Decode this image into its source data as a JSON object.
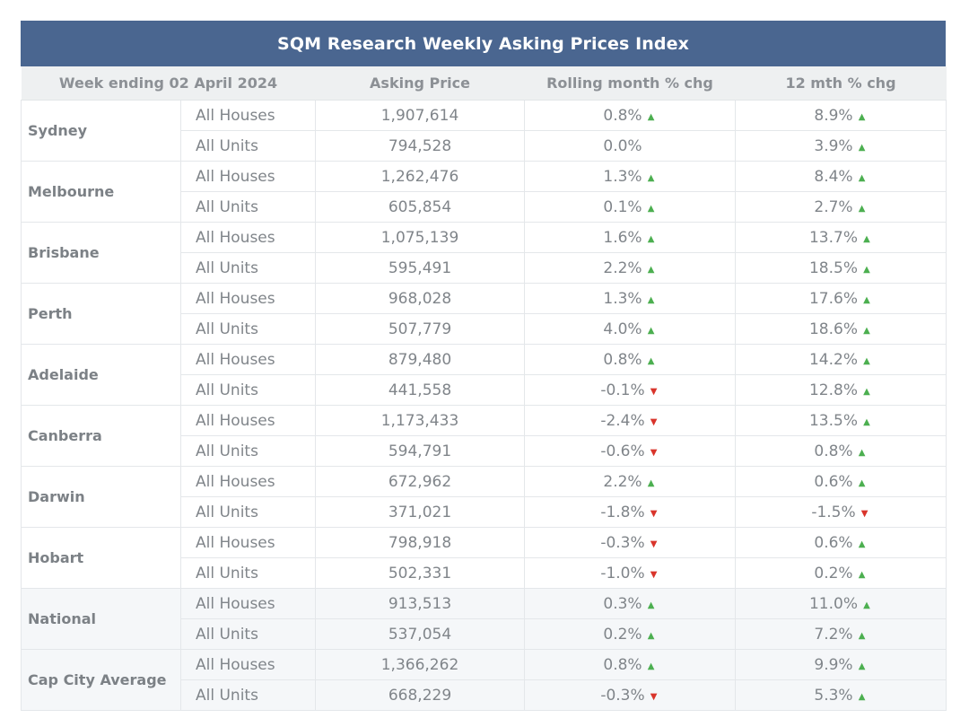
{
  "title": "SQM Research Weekly Asking Prices Index",
  "headers": {
    "week": "Week ending 02 April 2024",
    "price": "Asking Price",
    "month": "Rolling month % chg",
    "year": "12 mth % chg"
  },
  "icons": {
    "up": "triangle-up-icon",
    "down": "triangle-down-icon"
  },
  "colors": {
    "header_bg": "#4a6690",
    "up": "#4caf50",
    "down": "#d9342b"
  },
  "rows": [
    {
      "city": "Sydney",
      "houses": {
        "type": "All Houses",
        "price": "1,907,614",
        "month": "0.8%",
        "month_dir": "up",
        "year": "8.9%",
        "year_dir": "up"
      },
      "units": {
        "type": "All Units",
        "price": "794,528",
        "month": "0.0%",
        "month_dir": "none",
        "year": "3.9%",
        "year_dir": "up"
      }
    },
    {
      "city": "Melbourne",
      "houses": {
        "type": "All Houses",
        "price": "1,262,476",
        "month": "1.3%",
        "month_dir": "up",
        "year": "8.4%",
        "year_dir": "up"
      },
      "units": {
        "type": "All Units",
        "price": "605,854",
        "month": "0.1%",
        "month_dir": "up",
        "year": "2.7%",
        "year_dir": "up"
      }
    },
    {
      "city": "Brisbane",
      "houses": {
        "type": "All Houses",
        "price": "1,075,139",
        "month": "1.6%",
        "month_dir": "up",
        "year": "13.7%",
        "year_dir": "up"
      },
      "units": {
        "type": "All Units",
        "price": "595,491",
        "month": "2.2%",
        "month_dir": "up",
        "year": "18.5%",
        "year_dir": "up"
      }
    },
    {
      "city": "Perth",
      "houses": {
        "type": "All Houses",
        "price": "968,028",
        "month": "1.3%",
        "month_dir": "up",
        "year": "17.6%",
        "year_dir": "up"
      },
      "units": {
        "type": "All Units",
        "price": "507,779",
        "month": "4.0%",
        "month_dir": "up",
        "year": "18.6%",
        "year_dir": "up"
      }
    },
    {
      "city": "Adelaide",
      "houses": {
        "type": "All Houses",
        "price": "879,480",
        "month": "0.8%",
        "month_dir": "up",
        "year": "14.2%",
        "year_dir": "up"
      },
      "units": {
        "type": "All Units",
        "price": "441,558",
        "month": "-0.1%",
        "month_dir": "down",
        "year": "12.8%",
        "year_dir": "up"
      }
    },
    {
      "city": "Canberra",
      "houses": {
        "type": "All Houses",
        "price": "1,173,433",
        "month": "-2.4%",
        "month_dir": "down",
        "year": "13.5%",
        "year_dir": "up"
      },
      "units": {
        "type": "All Units",
        "price": "594,791",
        "month": "-0.6%",
        "month_dir": "down",
        "year": "0.8%",
        "year_dir": "up"
      }
    },
    {
      "city": "Darwin",
      "houses": {
        "type": "All Houses",
        "price": "672,962",
        "month": "2.2%",
        "month_dir": "up",
        "year": "0.6%",
        "year_dir": "up"
      },
      "units": {
        "type": "All Units",
        "price": "371,021",
        "month": "-1.8%",
        "month_dir": "down",
        "year": "-1.5%",
        "year_dir": "down"
      }
    },
    {
      "city": "Hobart",
      "houses": {
        "type": "All Houses",
        "price": "798,918",
        "month": "-0.3%",
        "month_dir": "down",
        "year": "0.6%",
        "year_dir": "up"
      },
      "units": {
        "type": "All Units",
        "price": "502,331",
        "month": "-1.0%",
        "month_dir": "down",
        "year": "0.2%",
        "year_dir": "up"
      }
    },
    {
      "city": "National",
      "shade": true,
      "houses": {
        "type": "All Houses",
        "price": "913,513",
        "month": "0.3%",
        "month_dir": "up",
        "year": "11.0%",
        "year_dir": "up"
      },
      "units": {
        "type": "All Units",
        "price": "537,054",
        "month": "0.2%",
        "month_dir": "up",
        "year": "7.2%",
        "year_dir": "up"
      }
    },
    {
      "city": "Cap City Average",
      "shade": true,
      "houses": {
        "type": "All Houses",
        "price": "1,366,262",
        "month": "0.8%",
        "month_dir": "up",
        "year": "9.9%",
        "year_dir": "up"
      },
      "units": {
        "type": "All Units",
        "price": "668,229",
        "month": "-0.3%",
        "month_dir": "down",
        "year": "5.3%",
        "year_dir": "up"
      }
    }
  ]
}
